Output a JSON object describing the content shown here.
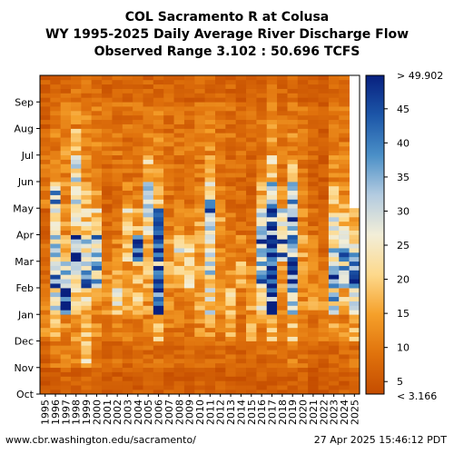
{
  "header": {
    "title_line1": "COL Sacramento R at Colusa",
    "title_line2": "WY 1995-2025 Daily Average River Discharge Flow",
    "title_line3": "Observed Range 3.102 : 50.696 TCFS"
  },
  "footer": {
    "source_url": "www.cbr.washington.edu/sacramento/",
    "timestamp": "27 Apr 2025 15:46:12 PDT"
  },
  "chart_data": {
    "type": "heatmap",
    "title": "WY 1995-2025 Daily Average River Discharge Flow",
    "x_categories": [
      "1995",
      "1996",
      "1997",
      "1998",
      "1999",
      "2000",
      "2001",
      "2002",
      "2003",
      "2004",
      "2005",
      "2006",
      "2007",
      "2008",
      "2009",
      "2010",
      "2011",
      "2012",
      "2013",
      "2014",
      "2015",
      "2016",
      "2017",
      "2018",
      "2019",
      "2020",
      "2021",
      "2022",
      "2023",
      "2024",
      "2025"
    ],
    "y_categories": [
      "Oct",
      "Nov",
      "Dec",
      "Jan",
      "Feb",
      "Mar",
      "Apr",
      "May",
      "Jun",
      "Jul",
      "Aug",
      "Sep"
    ],
    "y_axis_note": "water year runs Oct (bottom) to Sep (top); 2025 data ends late April",
    "last_month_index_2025": 6.9,
    "colorbar": {
      "min": 3.166,
      "max": 49.902,
      "min_label": "< 3.166",
      "max_label": "> 49.902",
      "ticks": [
        5,
        10,
        15,
        20,
        25,
        30,
        35,
        40,
        45
      ],
      "colormap": [
        "#c44c00",
        "#e0720c",
        "#f5a02a",
        "#fdd98c",
        "#f2eed8",
        "#b3cbe0",
        "#4a8fc7",
        "#1c56a8",
        "#08207f"
      ]
    },
    "values_tcfs": [
      [
        5,
        7,
        12,
        10,
        9,
        8,
        6,
        10,
        9,
        7,
        6,
        6
      ],
      [
        6,
        9,
        16,
        30,
        35,
        28,
        24,
        32,
        12,
        11,
        10,
        7
      ],
      [
        7,
        10,
        12,
        49,
        28,
        18,
        14,
        12,
        11,
        12,
        10,
        8
      ],
      [
        6,
        11,
        14,
        20,
        30,
        45,
        24,
        26,
        30,
        18,
        12,
        9
      ],
      [
        7,
        19,
        22,
        20,
        34,
        28,
        20,
        16,
        13,
        12,
        11,
        9
      ],
      [
        6,
        9,
        12,
        14,
        34,
        35,
        20,
        13,
        12,
        11,
        10,
        8
      ],
      [
        6,
        8,
        10,
        12,
        12,
        10,
        8,
        7,
        8,
        9,
        9,
        7
      ],
      [
        6,
        8,
        12,
        22,
        14,
        11,
        9,
        8,
        9,
        10,
        9,
        7
      ],
      [
        6,
        8,
        10,
        14,
        12,
        18,
        20,
        12,
        9,
        9,
        9,
        7
      ],
      [
        6,
        10,
        12,
        20,
        16,
        40,
        16,
        10,
        9,
        9,
        9,
        7
      ],
      [
        6,
        8,
        10,
        14,
        16,
        18,
        24,
        28,
        18,
        10,
        9,
        7
      ],
      [
        6,
        9,
        20,
        46,
        36,
        40,
        38,
        18,
        12,
        11,
        10,
        7
      ],
      [
        6,
        8,
        10,
        12,
        14,
        16,
        10,
        9,
        9,
        9,
        9,
        7
      ],
      [
        6,
        8,
        10,
        12,
        18,
        24,
        12,
        9,
        9,
        10,
        9,
        7
      ],
      [
        5,
        7,
        9,
        11,
        22,
        20,
        11,
        8,
        8,
        9,
        9,
        7
      ],
      [
        6,
        8,
        12,
        14,
        16,
        14,
        14,
        12,
        10,
        10,
        9,
        7
      ],
      [
        6,
        8,
        14,
        24,
        26,
        24,
        38,
        30,
        16,
        12,
        10,
        8
      ],
      [
        6,
        8,
        10,
        12,
        10,
        11,
        14,
        10,
        9,
        9,
        9,
        7
      ],
      [
        6,
        8,
        16,
        18,
        12,
        10,
        9,
        8,
        8,
        9,
        9,
        7
      ],
      [
        5,
        7,
        8,
        9,
        16,
        12,
        9,
        8,
        8,
        8,
        8,
        6
      ],
      [
        5,
        7,
        18,
        14,
        12,
        10,
        8,
        7,
        7,
        8,
        8,
        6
      ],
      [
        6,
        8,
        12,
        22,
        34,
        40,
        28,
        16,
        10,
        9,
        9,
        7
      ],
      [
        6,
        10,
        16,
        46,
        49,
        44,
        40,
        35,
        20,
        14,
        12,
        9
      ],
      [
        6,
        8,
        10,
        12,
        14,
        35,
        28,
        14,
        10,
        10,
        9,
        7
      ],
      [
        6,
        10,
        18,
        30,
        46,
        40,
        38,
        32,
        16,
        12,
        10,
        8
      ],
      [
        6,
        8,
        10,
        12,
        14,
        14,
        12,
        10,
        9,
        9,
        9,
        7
      ],
      [
        5,
        7,
        8,
        14,
        12,
        10,
        8,
        7,
        7,
        7,
        7,
        6
      ],
      [
        5,
        6,
        10,
        12,
        9,
        8,
        7,
        6,
        6,
        6,
        6,
        5
      ],
      [
        6,
        8,
        14,
        30,
        40,
        30,
        24,
        18,
        12,
        10,
        9,
        7
      ],
      [
        6,
        8,
        12,
        18,
        30,
        34,
        20,
        14,
        11,
        10,
        9,
        7
      ],
      [
        6,
        9,
        16,
        28,
        44,
        30,
        18,
        null,
        null,
        null,
        null,
        null
      ]
    ]
  }
}
